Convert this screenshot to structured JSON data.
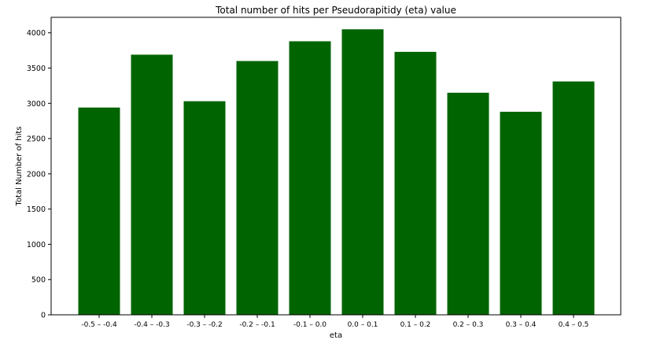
{
  "chart_data": {
    "type": "bar",
    "title": "Total number of hits per Pseudorapitidy (eta) value",
    "xlabel": "eta",
    "ylabel": "Total Number of hits",
    "categories": [
      "-0.5 – -0.4",
      "-0.4 – -0.3",
      "-0.3 – -0.2",
      "-0.2 – -0.1",
      "-0.1 – 0.0",
      "0.0 – 0.1",
      "0.1 – 0.2",
      "0.2 – 0.3",
      "0.3 – 0.4",
      "0.4 – 0.5"
    ],
    "values": [
      2940,
      3690,
      3030,
      3600,
      3880,
      4050,
      3730,
      3150,
      2880,
      3310
    ],
    "ylim": [
      0,
      4220
    ],
    "yticks": [
      0,
      500,
      1000,
      1500,
      2000,
      2500,
      3000,
      3500,
      4000
    ],
    "bar_color": "#006400",
    "grid": false
  }
}
